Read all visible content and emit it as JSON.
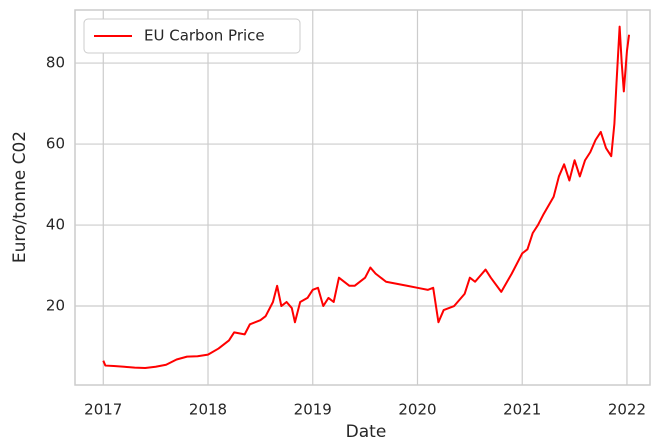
{
  "chart_data": {
    "type": "line",
    "xlabel": "Date",
    "ylabel": "Euro/tonne C02",
    "x": [
      2017.0,
      2017.02,
      2017.1,
      2017.2,
      2017.3,
      2017.4,
      2017.5,
      2017.6,
      2017.7,
      2017.8,
      2017.9,
      2018.0,
      2018.1,
      2018.2,
      2018.25,
      2018.35,
      2018.4,
      2018.5,
      2018.55,
      2018.62,
      2018.66,
      2018.7,
      2018.75,
      2018.8,
      2018.83,
      2018.88,
      2018.95,
      2019.0,
      2019.05,
      2019.1,
      2019.15,
      2019.2,
      2019.25,
      2019.35,
      2019.4,
      2019.5,
      2019.55,
      2019.6,
      2019.7,
      2019.8,
      2019.9,
      2020.0,
      2020.1,
      2020.15,
      2020.2,
      2020.25,
      2020.35,
      2020.45,
      2020.5,
      2020.55,
      2020.65,
      2020.7,
      2020.8,
      2020.9,
      2021.0,
      2021.05,
      2021.1,
      2021.15,
      2021.2,
      2021.3,
      2021.35,
      2021.4,
      2021.45,
      2021.5,
      2021.55,
      2021.6,
      2021.65,
      2021.7,
      2021.75,
      2021.8,
      2021.85,
      2021.88,
      2021.9,
      2021.93,
      2021.95,
      2021.97,
      2022.0,
      2022.02
    ],
    "series": [
      {
        "name": "EU Carbon Price",
        "color": "#ff0000",
        "values": [
          6.5,
          5.3,
          5.2,
          5.0,
          4.8,
          4.7,
          5.0,
          5.5,
          6.8,
          7.5,
          7.6,
          8.0,
          9.5,
          11.5,
          13.5,
          13.0,
          15.5,
          16.5,
          17.5,
          21,
          25,
          20,
          21,
          19.5,
          16,
          21,
          22,
          24,
          24.5,
          20,
          22,
          21,
          27,
          25,
          25,
          27,
          29.5,
          28,
          26,
          25.5,
          25,
          24.5,
          24,
          24.5,
          16,
          19,
          20,
          23,
          27,
          26,
          29,
          27,
          23.5,
          28,
          33,
          34,
          38,
          40,
          42.5,
          47,
          52,
          55,
          51,
          56,
          52,
          56,
          58,
          61,
          63,
          59,
          57,
          65,
          75,
          89,
          80,
          73,
          83,
          87
        ]
      }
    ],
    "xlim": [
      2016.73,
      2022.22
    ],
    "xticks": [
      2017,
      2018,
      2019,
      2020,
      2021,
      2022
    ],
    "ylim": [
      0.5,
      93.1
    ],
    "yticks": [
      20,
      40,
      60,
      80
    ],
    "grid": true,
    "legend": "upper left"
  }
}
